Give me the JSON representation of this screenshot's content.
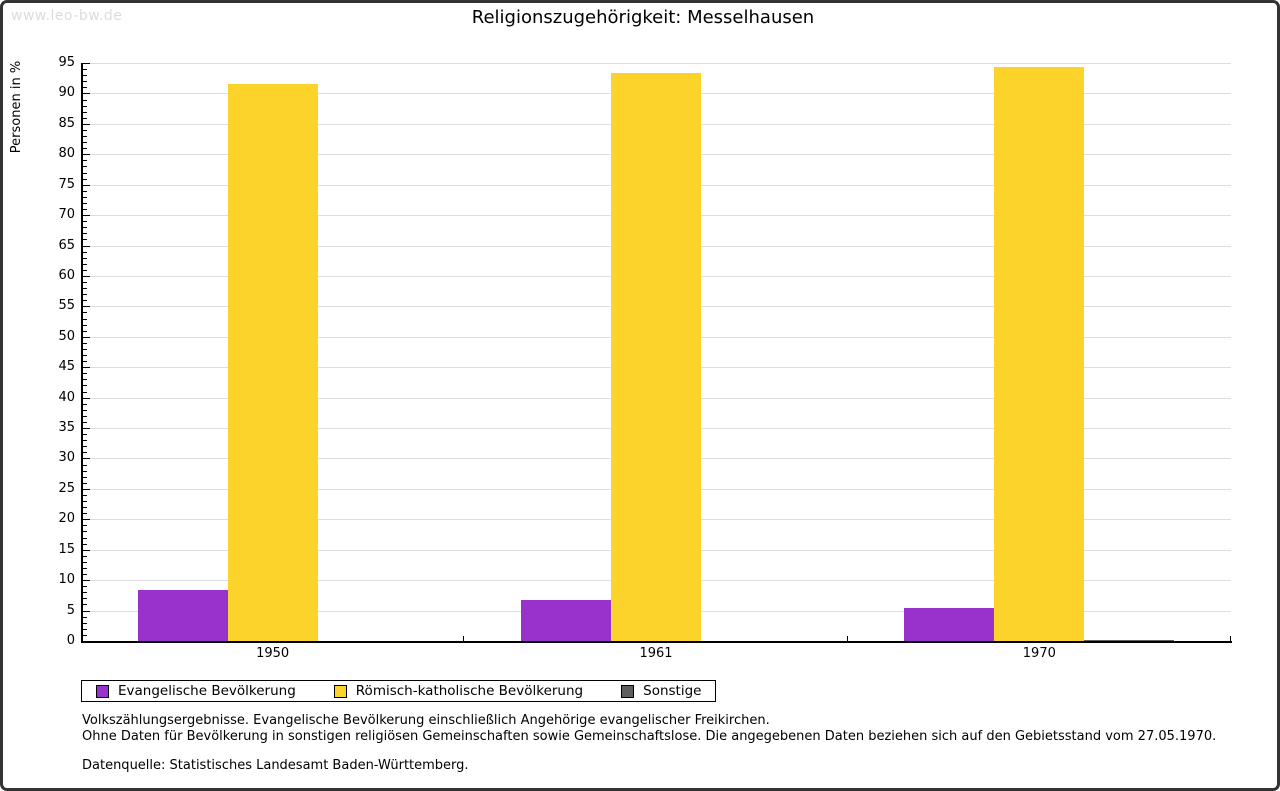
{
  "watermark": "www.leo-bw.de",
  "header": {
    "title": "Religionszugehörigkeit: Messelhausen"
  },
  "chart_data": {
    "type": "bar",
    "title": "Religionszugehörigkeit: Messelhausen",
    "ylabel": "Personen in %",
    "xlabel": "",
    "categories": [
      "1950",
      "1961",
      "1970"
    ],
    "series": [
      {
        "name": "Evangelische Bevölkerung",
        "color": "#9932cc",
        "values": [
          8.4,
          6.7,
          5.4
        ]
      },
      {
        "name": "Römisch-katholische Bevölkerung",
        "color": "#fcd32b",
        "values": [
          91.6,
          93.3,
          94.3
        ]
      },
      {
        "name": "Sonstige",
        "color": "#5f5f5f",
        "values": [
          0.0,
          0.0,
          0.2
        ]
      }
    ],
    "ylim": [
      0,
      95
    ],
    "ytick_step": 5,
    "ytick_minor_step": 1,
    "grid": true,
    "legend_position": "bottom-left"
  },
  "footnotes": {
    "line1": "Volkszählungsergebnisse. Evangelische Bevölkerung einschließlich Angehörige evangelischer Freikirchen.",
    "line2": "Ohne Daten für Bevölkerung in sonstigen religiösen Gemeinschaften sowie Gemeinschaftslose. Die angegebenen Daten beziehen sich auf den Gebietsstand vom 27.05.1970.",
    "source": "Datenquelle: Statistisches Landesamt Baden-Württemberg."
  }
}
